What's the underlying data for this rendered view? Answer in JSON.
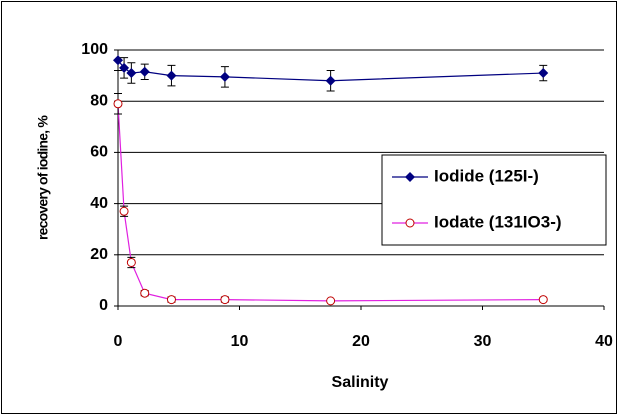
{
  "chart_data": {
    "type": "scatter",
    "x_label": "Salinity",
    "y_label": "recovery of iodine, %",
    "x": [
      0,
      0.5,
      1.1,
      2.2,
      4.4,
      8.8,
      17.5,
      35
    ],
    "series": [
      {
        "name": "Iodide (125I-)",
        "color": "#000080",
        "marker": "diamond",
        "values": [
          96,
          93,
          91,
          91.5,
          90,
          89.5,
          88,
          91
        ],
        "errors": [
          4,
          4,
          4,
          3,
          4,
          4,
          4,
          3
        ]
      },
      {
        "name": "Iodate (131IO3-)",
        "color": "#e020e0",
        "marker": "circle",
        "values": [
          79,
          37,
          17,
          5,
          2.5,
          2.5,
          2,
          2.5
        ],
        "errors": [
          4,
          2,
          2,
          1,
          1,
          1,
          0.5,
          0.5
        ]
      }
    ],
    "xlim": [
      0,
      40
    ],
    "xticks": [
      0,
      10,
      20,
      30,
      40
    ],
    "ylim": [
      0,
      100
    ],
    "yticks": [
      0,
      20,
      40,
      60,
      80,
      100
    ],
    "grid": true,
    "legend": "right"
  }
}
